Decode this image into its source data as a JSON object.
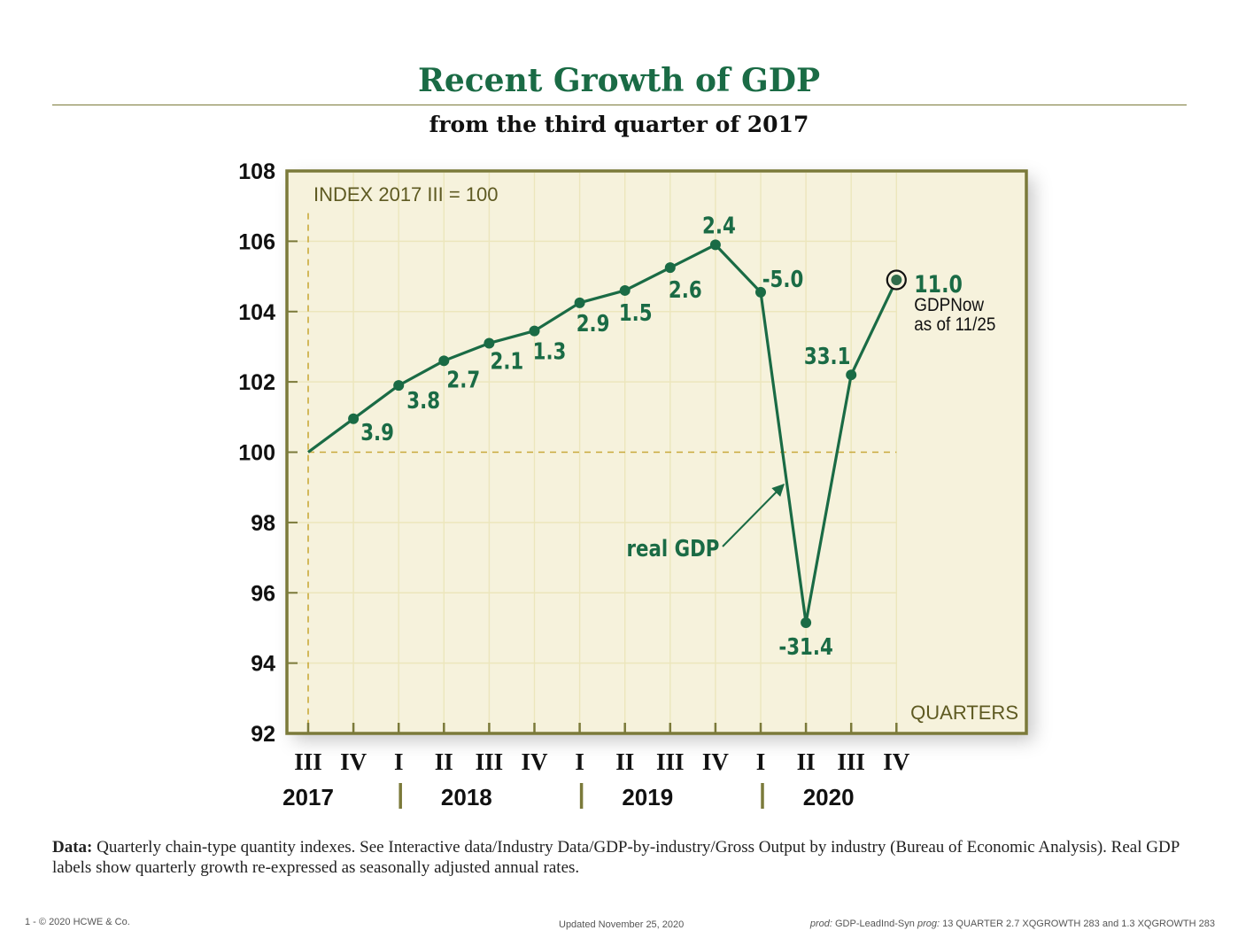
{
  "title": "Recent Growth of GDP",
  "subtitle": "from the third quarter of 2017",
  "footnote": {
    "label": "Data:",
    "text": "Quarterly chain-type quantity indexes. See Interactive data/Industry Data/GDP-by-industry/Gross Output by industry (Bureau of Economic Analysis). Real GDP labels show quarterly growth re-expressed as seasonally adjusted annual rates."
  },
  "footer": {
    "page": "1 -",
    "copyright": "© 2020 HCWE & Co.",
    "updated": "Updated November 25, 2020",
    "prod_label": "prod:",
    "prod_value": "GDP-LeadInd-Syn",
    "prog_label": "prog:",
    "prog_value": "13 QUARTER 2.7 XQGROWTH 283 and 1.3 XQGROWTH 283"
  },
  "chart_data": {
    "type": "line",
    "index_note": "INDEX 2017 III = 100",
    "x_axis_word": "QUARTERS",
    "ylim": [
      92,
      108
    ],
    "yticks": [
      92,
      94,
      96,
      98,
      100,
      102,
      104,
      106,
      108
    ],
    "quarter_labels": [
      "III",
      "IV",
      "I",
      "II",
      "III",
      "IV",
      "I",
      "II",
      "III",
      "IV",
      "I",
      "II",
      "III",
      "IV"
    ],
    "year_labels": [
      "2017",
      "2018",
      "2019",
      "2020"
    ],
    "series": [
      {
        "name": "real GDP",
        "values": [
          100.0,
          100.95,
          101.9,
          102.6,
          103.1,
          103.45,
          104.25,
          104.6,
          105.25,
          105.9,
          104.55,
          95.15,
          102.2,
          null
        ],
        "labels": [
          "",
          "3.9",
          "3.8",
          "2.7",
          "2.1",
          "1.3",
          "2.9",
          "1.5",
          "2.6",
          "2.4",
          "-5.0",
          "-31.4",
          "33.1",
          ""
        ]
      }
    ],
    "nowcast": {
      "quarter_index": 13,
      "value": 104.9,
      "label": "11.0",
      "note_line1": "GDPNow",
      "note_line2": "as of 11/25"
    },
    "baseline": 100,
    "colors": {
      "line": "#1a6b45",
      "plot_bg": "#f6f2dc",
      "frame": "#7b7a3a",
      "grid": "#ece6bc",
      "dashed": "#c9a93a",
      "axis_text": "#111111",
      "note_text": "#5e5a22"
    }
  }
}
